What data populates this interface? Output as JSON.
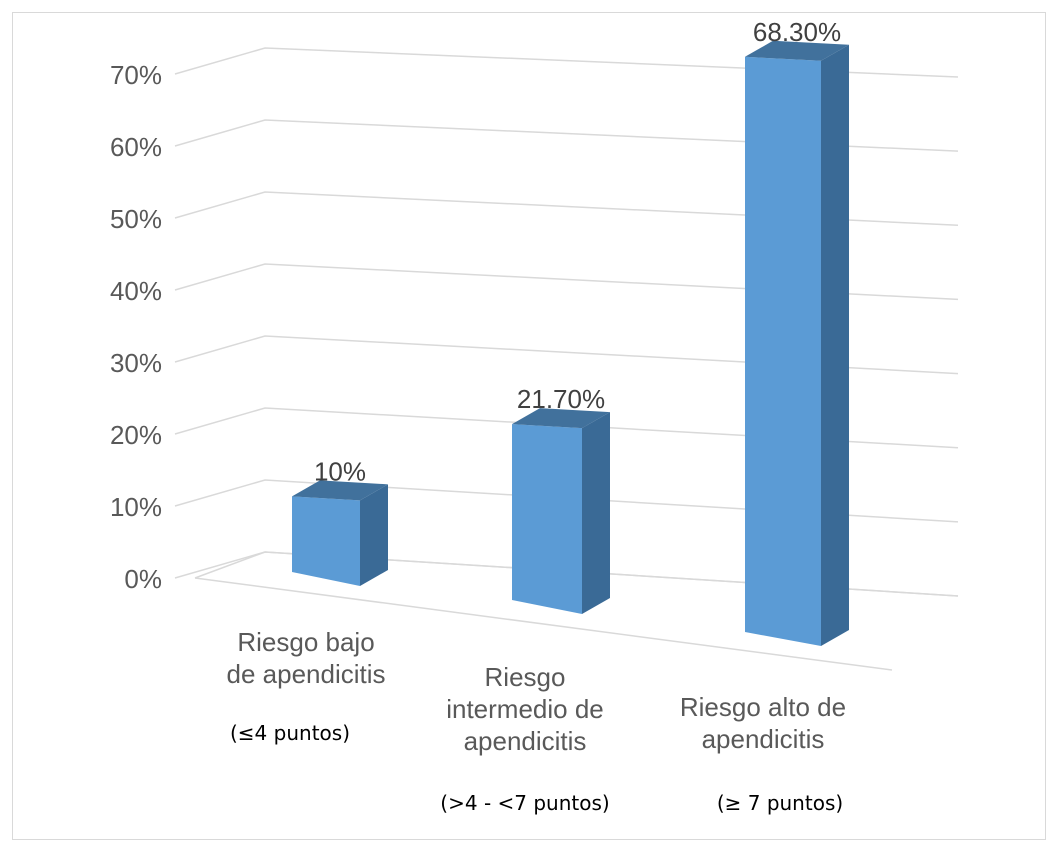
{
  "chart_data": {
    "type": "bar",
    "categories": [
      {
        "lines": [
          "Riesgo bajo",
          "de apendicitis"
        ],
        "sub": "(≤4 puntos)"
      },
      {
        "lines": [
          "Riesgo",
          "intermedio de",
          "apendicitis"
        ],
        "sub": "(>4 - <7 puntos)"
      },
      {
        "lines": [
          "Riesgo alto de",
          "apendicitis"
        ],
        "sub": "(≥ 7 puntos)"
      }
    ],
    "values": [
      10,
      21.7,
      68.3
    ],
    "data_labels": [
      "10%",
      "21.70%",
      "68.30%"
    ],
    "ylim": [
      0,
      70
    ],
    "yticks": [
      "0%",
      "10%",
      "20%",
      "30%",
      "40%",
      "50%",
      "60%",
      "70%"
    ],
    "grid": true,
    "colors": {
      "front": "#5b9bd5",
      "top": "#41719c",
      "side": "#3a6a96",
      "grid": "#d9d9d9"
    }
  }
}
